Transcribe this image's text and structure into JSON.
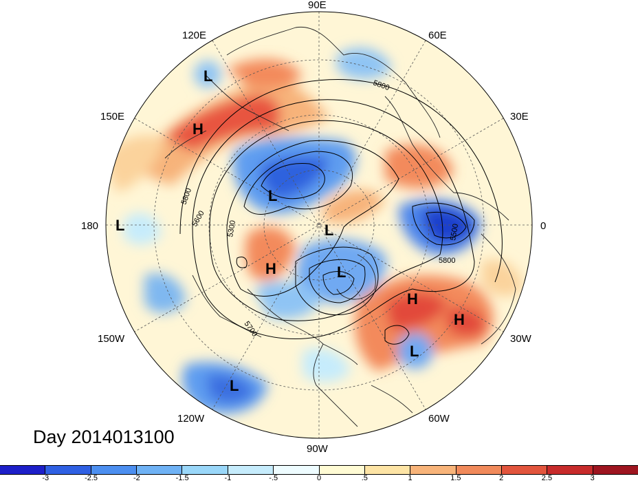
{
  "map": {
    "title": "Day 2014013100",
    "longitude_labels": [
      "90E",
      "60E",
      "30E",
      "0",
      "30W",
      "60W",
      "90W",
      "120W",
      "150W",
      "180",
      "150E",
      "120E"
    ],
    "pressure_markers": [
      {
        "text": "L",
        "region": "Bering / East Siberia"
      },
      {
        "text": "H",
        "region": "Kamchatka"
      },
      {
        "text": "L",
        "region": "Siberia"
      },
      {
        "text": "L",
        "region": "North Pacific (dateline)"
      },
      {
        "text": "L",
        "region": "North Pole"
      },
      {
        "text": "H",
        "region": "Alaska"
      },
      {
        "text": "L",
        "region": "Hudson Bay"
      },
      {
        "text": "H",
        "region": "North Atlantic"
      },
      {
        "text": "H",
        "region": "Eastern Atlantic"
      },
      {
        "text": "L",
        "region": "Subtropical Atlantic"
      },
      {
        "text": "L",
        "region": "Eastern Pacific"
      }
    ],
    "contour_labels": [
      "5800",
      "5800",
      "5600",
      "5300",
      "5700",
      "5800",
      "5500"
    ],
    "colors": {
      "strong_negative": "#2b5bd7",
      "negative": "#7fb8f0",
      "neutral": "#fff9d8",
      "positive": "#f5a36a",
      "strong_positive": "#d7302a"
    }
  },
  "colorbar": {
    "colors": [
      "#1d1fc8",
      "#2f60e3",
      "#4c8ff0",
      "#6fb2f5",
      "#9ad7f9",
      "#c6ecfc",
      "#eefcff",
      "#fffbd4",
      "#fde4a5",
      "#f8b47a",
      "#f18a5b",
      "#e2553d",
      "#c72b2b",
      "#9e1520"
    ],
    "ticks": [
      "-3",
      "-2.5",
      "-2",
      "-1.5",
      "-1",
      "-.5",
      "0",
      ".5",
      "1",
      "1.5",
      "2",
      "2.5",
      "3"
    ]
  }
}
